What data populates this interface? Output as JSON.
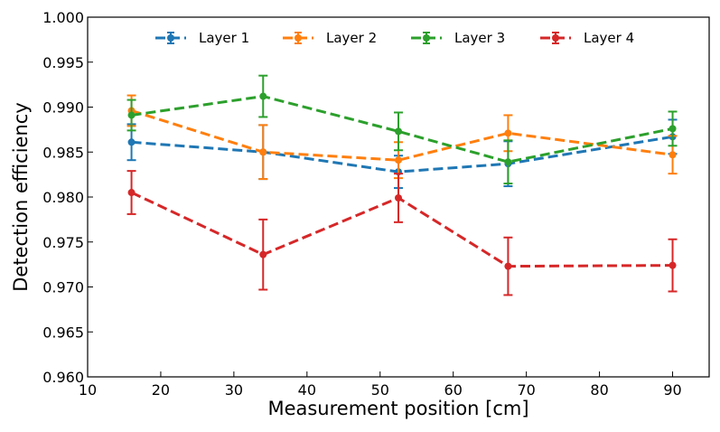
{
  "chart_data": {
    "type": "line",
    "title": "",
    "xlabel": "Measurement position [cm]",
    "ylabel": "Detection efficiency",
    "xlim": [
      10,
      95
    ],
    "ylim": [
      0.96,
      1.0
    ],
    "xticks": [
      "10",
      "20",
      "30",
      "40",
      "50",
      "60",
      "70",
      "80",
      "90"
    ],
    "yticks": [
      "0.960",
      "0.965",
      "0.970",
      "0.975",
      "0.980",
      "0.985",
      "0.990",
      "0.995",
      "1.000"
    ],
    "grid": false,
    "legend_position": "top",
    "x": [
      16,
      34,
      52.5,
      67.5,
      90
    ],
    "series": [
      {
        "name": "Layer 1",
        "color": "#1f77b4",
        "values": [
          0.9861,
          0.985,
          0.9828,
          0.9837,
          0.9867
        ],
        "errors": [
          0.002,
          0.003,
          0.0018,
          0.0025,
          0.0019
        ]
      },
      {
        "name": "Layer 2",
        "color": "#ff7f0e",
        "values": [
          0.9896,
          0.985,
          0.9841,
          0.9871,
          0.9847
        ],
        "errors": [
          0.0017,
          0.003,
          0.002,
          0.002,
          0.0021
        ]
      },
      {
        "name": "Layer 3",
        "color": "#2ca02c",
        "values": [
          0.9891,
          0.9912,
          0.9873,
          0.9839,
          0.9876
        ],
        "errors": [
          0.0017,
          0.0023,
          0.0021,
          0.0024,
          0.0019
        ]
      },
      {
        "name": "Layer 4",
        "color": "#d62728",
        "values": [
          0.9805,
          0.9736,
          0.9799,
          0.9723,
          0.9724
        ],
        "errors": [
          0.0024,
          0.0039,
          0.0027,
          0.0032,
          0.0029
        ]
      }
    ]
  }
}
